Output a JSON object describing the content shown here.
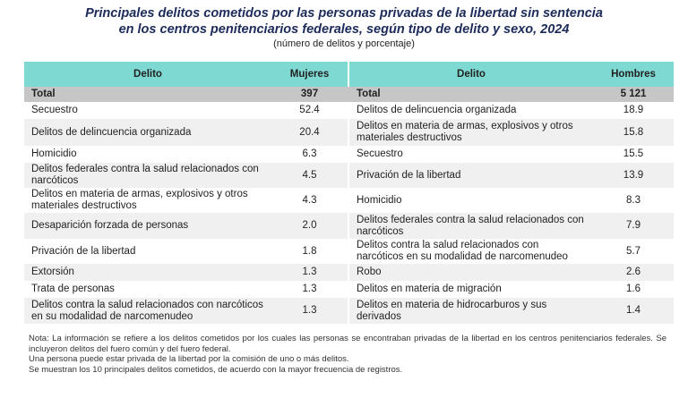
{
  "title_line1": "Principales delitos cometidos por las personas privadas de la libertad sin sentencia",
  "title_line2": "en los centros penitenciarios federales, según tipo de delito y sexo, 2024",
  "subtitle": "(número de delitos y porcentaje)",
  "headers": {
    "delito_left": "Delito",
    "mujeres": "Mujeres",
    "delito_right": "Delito",
    "hombres": "Hombres"
  },
  "total": {
    "label_left": "Total",
    "mujeres": "397",
    "label_right": "Total",
    "hombres": "5 121"
  },
  "rows": [
    {
      "m_delito": "Secuestro",
      "m_val": "52.4",
      "h_delito": "Delitos de delincuencia organizada",
      "h_val": "18.9"
    },
    {
      "m_delito": "Delitos de delincuencia organizada",
      "m_val": "20.4",
      "h_delito": "Delitos en materia de armas, explosivos y otros materiales destructivos",
      "h_val": "15.8"
    },
    {
      "m_delito": "Homicidio",
      "m_val": "6.3",
      "h_delito": "Secuestro",
      "h_val": "15.5"
    },
    {
      "m_delito": "Delitos federales contra la salud relacionados con narcóticos",
      "m_val": "4.5",
      "h_delito": "Privación de la libertad",
      "h_val": "13.9"
    },
    {
      "m_delito": "Delitos en materia de armas, explosivos y otros materiales destructivos",
      "m_val": "4.3",
      "h_delito": "Homicidio",
      "h_val": "8.3"
    },
    {
      "m_delito": "Desaparición forzada de personas",
      "m_val": "2.0",
      "h_delito": "Delitos federales contra la salud relacionados con narcóticos",
      "h_val": "7.9"
    },
    {
      "m_delito": "Privación de la libertad",
      "m_val": "1.8",
      "h_delito": "Delitos contra la salud relacionados con narcóticos en su modalidad de narcomenudeo",
      "h_val": "5.7"
    },
    {
      "m_delito": "Extorsión",
      "m_val": "1.3",
      "h_delito": "Robo",
      "h_val": "2.6"
    },
    {
      "m_delito": "Trata de personas",
      "m_val": "1.3",
      "h_delito": "Delitos en materia de migración",
      "h_val": "1.6"
    },
    {
      "m_delito": "Delitos contra la salud relacionados con narcóticos en su modalidad de narcomenudeo",
      "m_val": "1.3",
      "h_delito": "Delitos en materia de hidrocarburos y sus derivados",
      "h_val": "1.4"
    }
  ],
  "notes": [
    "Nota: La información se refiere a los delitos cometidos por los cuales las personas se encontraban privadas de la libertad en los centros penitenciarios federales. Se incluyeron delitos del fuero común y del fuero federal.",
    "Una persona puede estar privada de la libertad por la comisión de uno o más delitos.",
    "Se muestran los 10 principales delitos cometidos, de acuerdo con la mayor frecuencia de registros."
  ]
}
